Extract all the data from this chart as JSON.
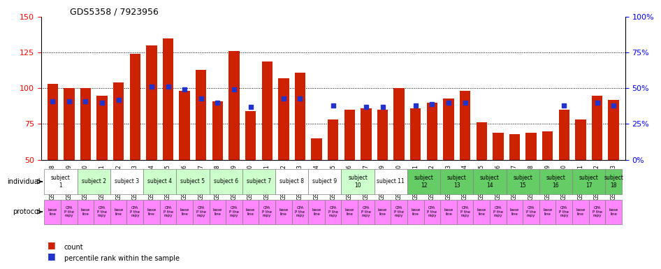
{
  "title": "GDS5358 / 7923956",
  "samples": [
    "GSM1207208",
    "GSM1207209",
    "GSM1207210",
    "GSM1207211",
    "GSM1207212",
    "GSM1207213",
    "GSM1207214",
    "GSM1207215",
    "GSM1207216",
    "GSM1207217",
    "GSM1207218",
    "GSM1207219",
    "GSM1207220",
    "GSM1207221",
    "GSM1207222",
    "GSM1207223",
    "GSM1207224",
    "GSM1207225",
    "GSM1207226",
    "GSM1207227",
    "GSM1207229",
    "GSM1207230",
    "GSM1207231",
    "GSM1207232",
    "GSM1207233",
    "GSM1207234",
    "GSM1207235",
    "GSM1207236",
    "GSM1207237",
    "GSM1207238",
    "GSM1207239",
    "GSM1207240",
    "GSM1207241",
    "GSM1207242",
    "GSM1207243"
  ],
  "bar_heights": [
    103,
    100,
    100,
    95,
    104,
    124,
    130,
    135,
    98,
    113,
    91,
    126,
    84,
    119,
    107,
    111,
    65,
    78,
    85,
    86,
    85,
    100,
    86,
    90,
    93,
    98,
    76,
    69,
    68,
    69,
    70,
    85,
    78,
    95,
    92
  ],
  "dot_values": [
    91,
    91,
    91,
    90,
    92,
    null,
    101,
    101,
    99,
    93,
    90,
    99,
    87,
    null,
    93,
    93,
    null,
    88,
    null,
    87,
    87,
    null,
    88,
    89,
    90,
    90,
    null,
    null,
    null,
    null,
    null,
    88,
    null,
    90,
    88
  ],
  "ylim_left": [
    50,
    150
  ],
  "ylim_right": [
    0,
    100
  ],
  "yticks_left": [
    50,
    75,
    100,
    125,
    150
  ],
  "yticks_right": [
    0,
    25,
    50,
    75,
    100
  ],
  "ytick_labels_right": [
    "0%",
    "25%",
    "50%",
    "75%",
    "100%"
  ],
  "bar_color": "#cc2200",
  "dot_color": "#2233cc",
  "grid_color": "#555555",
  "bg_color": "#ffffff",
  "subjects": [
    {
      "label": "subject\n1",
      "start": 0,
      "end": 2,
      "color": "#ffffff"
    },
    {
      "label": "subject 2",
      "start": 2,
      "end": 4,
      "color": "#ccffcc"
    },
    {
      "label": "subject 3",
      "start": 4,
      "end": 6,
      "color": "#ffffff"
    },
    {
      "label": "subject 4",
      "start": 6,
      "end": 8,
      "color": "#ccffcc"
    },
    {
      "label": "subject 5",
      "start": 8,
      "end": 10,
      "color": "#ccffcc"
    },
    {
      "label": "subject 6",
      "start": 10,
      "end": 12,
      "color": "#ccffcc"
    },
    {
      "label": "subject 7",
      "start": 12,
      "end": 14,
      "color": "#ccffcc"
    },
    {
      "label": "subject 8",
      "start": 14,
      "end": 16,
      "color": "#ffffff"
    },
    {
      "label": "subject 9",
      "start": 16,
      "end": 18,
      "color": "#ffffff"
    },
    {
      "label": "subject\n10",
      "start": 18,
      "end": 20,
      "color": "#ccffcc"
    },
    {
      "label": "subject 11",
      "start": 20,
      "end": 22,
      "color": "#ffffff"
    },
    {
      "label": "subject\n12",
      "start": 22,
      "end": 24,
      "color": "#66cc66"
    },
    {
      "label": "subject\n13",
      "start": 24,
      "end": 26,
      "color": "#66cc66"
    },
    {
      "label": "subject\n14",
      "start": 26,
      "end": 28,
      "color": "#66cc66"
    },
    {
      "label": "subject\n15",
      "start": 28,
      "end": 30,
      "color": "#66cc66"
    },
    {
      "label": "subject\n16",
      "start": 30,
      "end": 32,
      "color": "#66cc66"
    },
    {
      "label": "subject\n17",
      "start": 32,
      "end": 34,
      "color": "#66cc66"
    },
    {
      "label": "subject\n18",
      "start": 34,
      "end": 35,
      "color": "#66cc66"
    }
  ],
  "protocols": [
    {
      "label": "base\nline",
      "color": "#ff88ff"
    },
    {
      "label": "CPA\nP the\nrapy",
      "color": "#ff88ff"
    }
  ],
  "legend_count_color": "#cc2200",
  "legend_dot_color": "#2233cc",
  "legend_count_label": "count",
  "legend_dot_label": "percentile rank within the sample"
}
